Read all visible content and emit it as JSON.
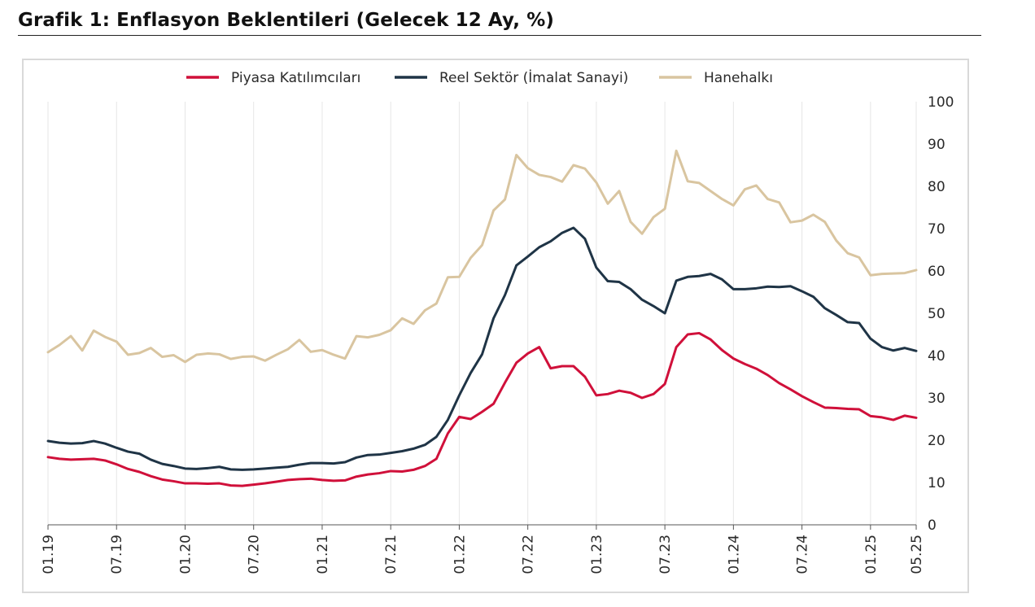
{
  "title": "Grafik 1: Enflasyon Beklentileri (Gelecek 12 Ay, %)",
  "chart_data": {
    "type": "line",
    "title": "Grafik 1: Enflasyon Beklentileri (Gelecek 12 Ay, %)",
    "xlabel": "",
    "ylabel": "",
    "ylim": [
      0,
      100
    ],
    "yticks": [
      "0",
      "10",
      "20",
      "30",
      "40",
      "50",
      "60",
      "70",
      "80",
      "90",
      "100"
    ],
    "xticks": [
      "01.19",
      "07.19",
      "01.20",
      "07.20",
      "01.21",
      "07.21",
      "01.22",
      "07.22",
      "01.23",
      "07.23",
      "01.24",
      "07.24",
      "01.25",
      "05.25"
    ],
    "grid": "vertical",
    "legend_position": "top",
    "x_start": "2019-01",
    "x_end": "2025-05",
    "series": [
      {
        "name": "Piyasa Katılımcıları",
        "color": "#d0103a",
        "values": [
          16.0,
          15.6,
          15.4,
          15.5,
          15.6,
          15.2,
          14.3,
          13.2,
          12.5,
          11.5,
          10.7,
          10.3,
          9.8,
          9.8,
          9.7,
          9.8,
          9.3,
          9.2,
          9.5,
          9.8,
          10.2,
          10.6,
          10.8,
          10.9,
          10.6,
          10.4,
          10.5,
          11.4,
          11.9,
          12.2,
          12.7,
          12.6,
          13.0,
          13.9,
          15.6,
          21.6,
          25.5,
          25.0,
          26.7,
          28.6,
          33.6,
          38.3,
          40.5,
          42.0,
          37.0,
          37.5,
          37.5,
          35.0,
          30.6,
          30.9,
          31.7,
          31.2,
          30.0,
          30.9,
          33.3,
          42.0,
          45.0,
          45.3,
          43.8,
          41.3,
          39.3,
          38.0,
          36.9,
          35.4,
          33.5,
          32.0,
          30.4,
          29.0,
          27.7,
          27.6,
          27.4,
          27.3,
          25.7,
          25.4,
          24.8,
          25.8,
          25.3
        ]
      },
      {
        "name": "Reel Sektör (İmalat Sanayi)",
        "color": "#1f3446",
        "values": [
          19.8,
          19.4,
          19.2,
          19.3,
          19.8,
          19.2,
          18.2,
          17.3,
          16.8,
          15.4,
          14.4,
          13.9,
          13.3,
          13.2,
          13.4,
          13.7,
          13.1,
          13.0,
          13.1,
          13.3,
          13.5,
          13.7,
          14.2,
          14.6,
          14.6,
          14.5,
          14.8,
          15.9,
          16.5,
          16.6,
          17.0,
          17.4,
          18.0,
          18.9,
          20.8,
          24.8,
          30.6,
          35.9,
          40.3,
          48.8,
          54.3,
          61.3,
          63.4,
          65.6,
          67.0,
          69.0,
          70.2,
          67.6,
          60.8,
          57.6,
          57.4,
          55.7,
          53.2,
          51.7,
          50.0,
          57.7,
          58.6,
          58.8,
          59.3,
          58.0,
          55.7,
          55.7,
          55.9,
          56.3,
          56.2,
          56.4,
          55.2,
          53.9,
          51.2,
          49.6,
          47.9,
          47.7,
          44.0,
          42.0,
          41.2,
          41.8,
          41.1
        ]
      },
      {
        "name": "Hanehalkı",
        "color": "#d9c5a0",
        "values": [
          40.8,
          42.5,
          44.6,
          41.2,
          45.9,
          44.4,
          43.3,
          40.2,
          40.6,
          41.8,
          39.7,
          40.1,
          38.5,
          40.2,
          40.5,
          40.3,
          39.2,
          39.7,
          39.8,
          38.8,
          40.2,
          41.5,
          43.7,
          40.9,
          41.3,
          40.2,
          39.3,
          44.6,
          44.3,
          44.9,
          46.0,
          48.8,
          47.5,
          50.7,
          52.3,
          58.5,
          58.6,
          63.1,
          66.1,
          74.3,
          76.9,
          87.4,
          84.3,
          82.7,
          82.2,
          81.1,
          85.0,
          84.2,
          80.9,
          75.9,
          78.9,
          71.6,
          68.8,
          72.7,
          74.7,
          88.4,
          81.2,
          80.8,
          78.9,
          77.0,
          75.5,
          79.3,
          80.2,
          77.0,
          76.2,
          71.5,
          71.9,
          73.3,
          71.6,
          67.2,
          64.2,
          63.2,
          59.0,
          59.3,
          59.4,
          59.5,
          60.2
        ]
      }
    ]
  }
}
